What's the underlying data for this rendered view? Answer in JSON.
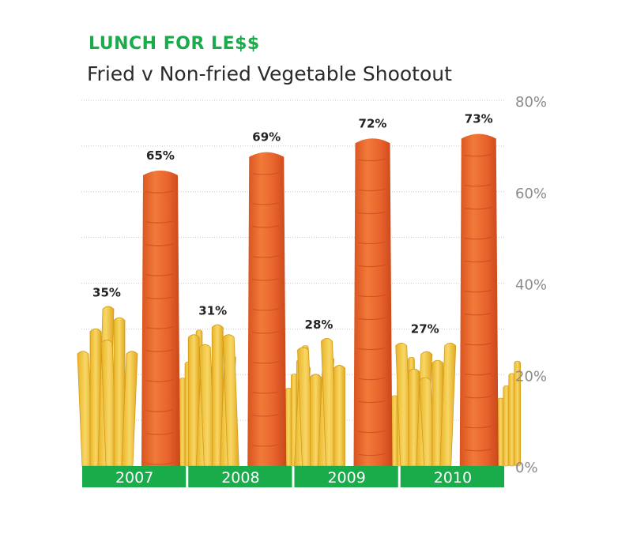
{
  "header": {
    "brand": "LUNCH FOR LE$$",
    "title": "Fried v Non-fried Vegetable Shootout"
  },
  "chart_data": {
    "type": "bar",
    "title": "Fried v Non-fried Vegetable Shootout",
    "categories": [
      "2007",
      "2008",
      "2009",
      "2010"
    ],
    "series": [
      {
        "values": [
          35,
          31,
          28,
          27
        ],
        "labels": [
          "35%",
          "31%",
          "28%",
          "27%"
        ],
        "color": "#f2c230",
        "icon": "french-fries"
      },
      {
        "values": [
          65,
          69,
          72,
          73
        ],
        "labels": [
          "65%",
          "69%",
          "72%",
          "73%"
        ],
        "color": "#e8622c",
        "icon": "carrot"
      }
    ],
    "ylim": [
      0,
      80
    ],
    "yticks": [
      "0%",
      "20%",
      "40%",
      "60%",
      "80%"
    ],
    "y_axis_position": "right",
    "grid": true,
    "category_band_color": "#1aab4b"
  }
}
